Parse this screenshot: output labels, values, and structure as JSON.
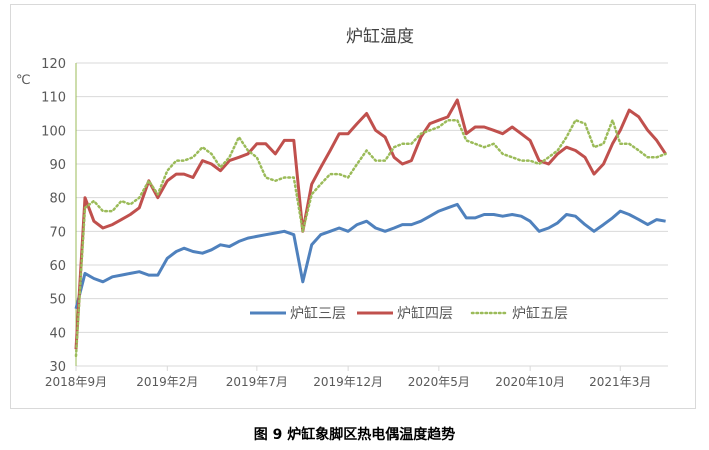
{
  "caption": "图 9  炉缸象脚区热电偶温度趋势",
  "chart_data": {
    "type": "line",
    "title": "炉缸温度",
    "ylabel": "℃",
    "xlabel": "",
    "ylim": [
      30,
      120
    ],
    "yticks": [
      30,
      40,
      50,
      60,
      70,
      80,
      90,
      100,
      110,
      120
    ],
    "grid": true,
    "legend": "bottom-inside",
    "xticks": [
      {
        "date": "2018-09-01",
        "label": "2018年9月"
      },
      {
        "date": "2019-02-01",
        "label": "2019年2月"
      },
      {
        "date": "2019-07-01",
        "label": "2019年7月"
      },
      {
        "date": "2019-12-01",
        "label": "2019年12月"
      },
      {
        "date": "2020-05-01",
        "label": "2020年5月"
      },
      {
        "date": "2020-10-01",
        "label": "2020年10月"
      },
      {
        "date": "2021-03-01",
        "label": "2021年3月"
      }
    ],
    "x": [
      "2018-09-01",
      "2018-09-16",
      "2018-10-01",
      "2018-10-16",
      "2018-11-01",
      "2018-11-16",
      "2018-12-01",
      "2018-12-16",
      "2019-01-01",
      "2019-01-16",
      "2019-02-01",
      "2019-02-16",
      "2019-03-01",
      "2019-03-16",
      "2019-04-01",
      "2019-04-16",
      "2019-05-01",
      "2019-05-16",
      "2019-06-01",
      "2019-06-16",
      "2019-07-01",
      "2019-07-16",
      "2019-08-01",
      "2019-08-16",
      "2019-09-01",
      "2019-09-16",
      "2019-10-01",
      "2019-10-16",
      "2019-11-01",
      "2019-11-16",
      "2019-12-01",
      "2019-12-16",
      "2020-01-01",
      "2020-01-16",
      "2020-02-01",
      "2020-02-16",
      "2020-03-01",
      "2020-03-16",
      "2020-04-01",
      "2020-04-16",
      "2020-05-01",
      "2020-05-16",
      "2020-06-01",
      "2020-06-16",
      "2020-07-01",
      "2020-07-16",
      "2020-08-01",
      "2020-08-16",
      "2020-09-01",
      "2020-09-16",
      "2020-10-01",
      "2020-10-16",
      "2020-11-01",
      "2020-11-16",
      "2020-12-01",
      "2020-12-16",
      "2021-01-01",
      "2021-01-16",
      "2021-02-01",
      "2021-02-16",
      "2021-03-01",
      "2021-03-16",
      "2021-04-01",
      "2021-04-16",
      "2021-05-01",
      "2021-05-16"
    ],
    "series": [
      {
        "name": "炉缸三层",
        "color": "#4f81bd",
        "style": "solid",
        "values": [
          47,
          57.5,
          56,
          55,
          56.5,
          57,
          57.5,
          58,
          57,
          57,
          62,
          64,
          65,
          64,
          63.5,
          64.5,
          66,
          65.5,
          67,
          68,
          68.5,
          69,
          69.5,
          70,
          69,
          55,
          66,
          69,
          70,
          71,
          70,
          72,
          73,
          71,
          70,
          71,
          72,
          72,
          73,
          74.5,
          76,
          77,
          78,
          74,
          74,
          75,
          75,
          74.5,
          75,
          74.5,
          73,
          70,
          71,
          72.5,
          75,
          74.5,
          72,
          70,
          72,
          74,
          76,
          75,
          73.5,
          72,
          73.5,
          73
        ]
      },
      {
        "name": "炉缸四层",
        "color": "#c0504d",
        "style": "solid",
        "values": [
          35,
          80,
          73,
          71,
          72,
          73.5,
          75,
          77,
          85,
          80,
          85,
          87,
          87,
          86,
          91,
          90,
          88,
          91,
          92,
          93,
          96,
          96,
          93,
          97,
          97,
          70,
          84,
          89,
          94,
          99,
          99,
          102,
          105,
          100,
          98,
          92,
          90,
          91,
          98,
          102,
          103,
          104,
          109,
          99,
          101,
          101,
          100,
          99,
          101,
          99,
          97,
          91,
          90,
          93,
          95,
          94,
          92,
          87,
          90,
          96,
          100,
          106,
          104,
          100,
          97,
          93
        ]
      },
      {
        "name": "炉缸五层",
        "color": "#9bbb59",
        "style": "dotted",
        "values": [
          33,
          77,
          79,
          76,
          76,
          79,
          78,
          80,
          85,
          81,
          88,
          91,
          91,
          92,
          95,
          93,
          89,
          92,
          98,
          94,
          92,
          86,
          85,
          86,
          86,
          70,
          81,
          84,
          87,
          87,
          86,
          90,
          94,
          91,
          91,
          95,
          96,
          96,
          99,
          100,
          101,
          103,
          103,
          97,
          96,
          95,
          96,
          93,
          92,
          91,
          91,
          90,
          92,
          94,
          98,
          103,
          102,
          95,
          96,
          103,
          96,
          96,
          94,
          92,
          92,
          93
        ]
      }
    ]
  }
}
